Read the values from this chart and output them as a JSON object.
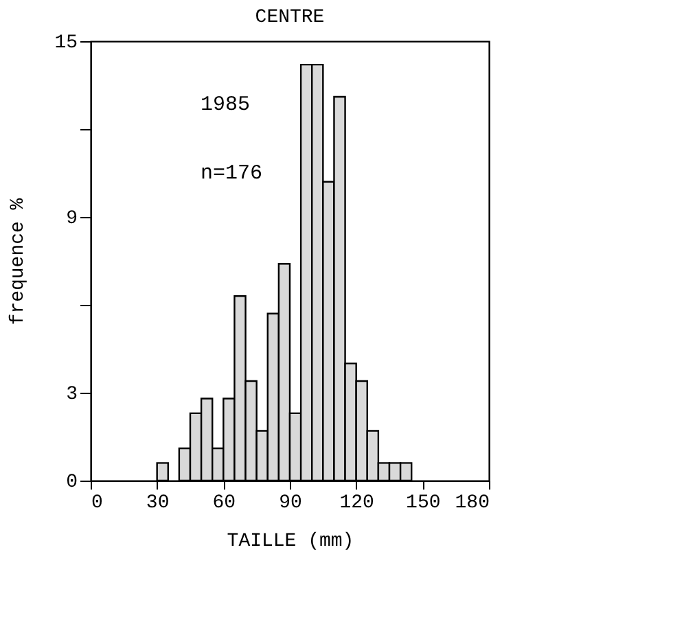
{
  "chart_data": {
    "type": "histogram",
    "title": "CENTRE",
    "xlabel": "TAILLE (mm)",
    "ylabel": "frequence %",
    "bins": [
      30,
      35,
      40,
      45,
      50,
      55,
      60,
      65,
      70,
      75,
      80,
      85,
      90,
      95,
      100,
      105,
      110,
      115,
      120,
      125,
      130,
      135,
      140,
      145
    ],
    "values": [
      0.6,
      0,
      1.1,
      2.3,
      2.8,
      1.1,
      2.8,
      6.3,
      3.4,
      1.7,
      5.7,
      7.4,
      2.3,
      14.2,
      14.2,
      10.2,
      13.1,
      4.0,
      3.4,
      1.7,
      0.6,
      0.6,
      0.6
    ],
    "color": "#d9d9d9",
    "xlim": [
      0,
      180
    ],
    "xticks": [
      0,
      30,
      60,
      90,
      120,
      150,
      180
    ],
    "ylim": [
      0,
      15
    ],
    "yticks": [
      0,
      3,
      {
        "value": 6,
        "label": null
      },
      9,
      {
        "value": 12,
        "label": null
      },
      15
    ],
    "annotations": [
      "1985",
      "n=176"
    ],
    "grid": false
  }
}
